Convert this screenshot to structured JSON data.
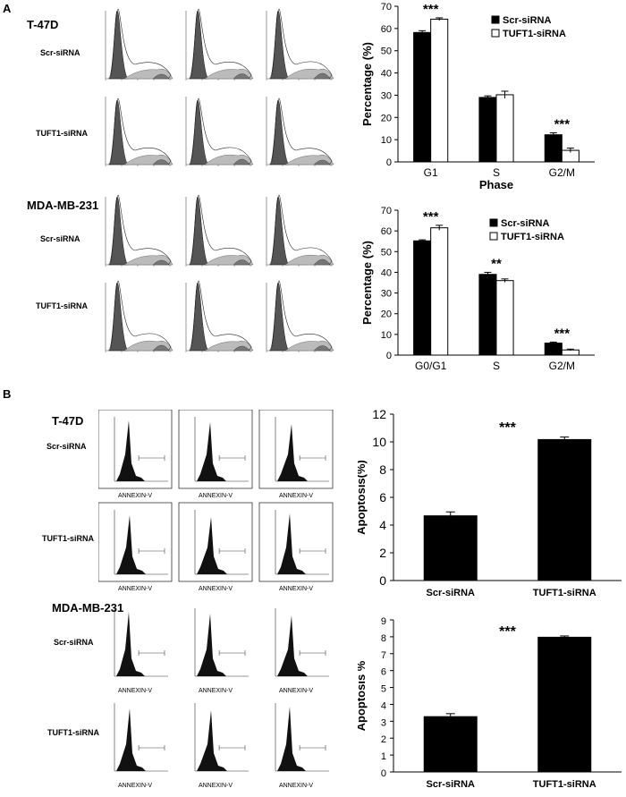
{
  "panels": {
    "a": {
      "label": "A",
      "t47d": {
        "cell_line": "T-47D",
        "rows": [
          "Scr-siRNA",
          "TUFT1-siRNA"
        ]
      },
      "mda": {
        "cell_line": "MDA-MB-231",
        "rows": [
          "Scr-siRNA",
          "TUFT1-siRNA"
        ]
      }
    },
    "b": {
      "label": "B",
      "t47d": {
        "cell_line": "T-47D",
        "rows": [
          "Scr-siRNA",
          "TUFT1-siRNA"
        ],
        "xlabel": "ANNEXIN-V"
      },
      "mda": {
        "cell_line": "MDA-MB-231",
        "rows": [
          "Scr-siRNA",
          "TUFT1-siRNA"
        ],
        "xlabel": "ANNEXIN-V"
      }
    }
  },
  "chart_data": [
    {
      "id": "a_t47d_cellcycle",
      "type": "bar",
      "categories": [
        "G1",
        "S",
        "G2/M"
      ],
      "series": [
        {
          "name": "Scr-siRNA",
          "values": [
            58.2,
            29,
            12.2
          ],
          "errors": [
            0.8,
            0.7,
            0.9
          ],
          "color": "#000000"
        },
        {
          "name": "TUFT1-siRNA",
          "values": [
            64.2,
            30.2,
            5.2
          ],
          "errors": [
            0.6,
            1.6,
            1.0
          ],
          "color": "#ffffff"
        }
      ],
      "significance": [
        "***",
        "",
        "***"
      ],
      "title": "",
      "xlabel": "Phase",
      "ylabel": "Percentage (%)",
      "ylim": [
        0,
        70
      ],
      "yticks": [
        0,
        10,
        20,
        30,
        40,
        50,
        60,
        70
      ],
      "legend_position": "top-right"
    },
    {
      "id": "a_mda_cellcycle",
      "type": "bar",
      "categories": [
        "G0/G1",
        "S",
        "G2/M"
      ],
      "series": [
        {
          "name": "Scr-siRNA",
          "values": [
            55.2,
            39,
            5.8
          ],
          "errors": [
            0.5,
            1.0,
            0.5
          ],
          "color": "#000000"
        },
        {
          "name": "TUFT1-siRNA",
          "values": [
            61.5,
            36,
            2.5
          ],
          "errors": [
            1.2,
            0.8,
            0.4
          ],
          "color": "#ffffff"
        }
      ],
      "significance": [
        "***",
        "**",
        "***"
      ],
      "title": "",
      "xlabel": "",
      "ylabel": "Percentage (%)",
      "ylim": [
        0,
        70
      ],
      "yticks": [
        0,
        10,
        20,
        30,
        40,
        50,
        60,
        70
      ],
      "legend_position": "top-right"
    },
    {
      "id": "b_t47d_apoptosis",
      "type": "bar",
      "categories": [
        "Scr-siRNA",
        "TUFT1-siRNA"
      ],
      "values": [
        4.7,
        10.2
      ],
      "errors": [
        0.25,
        0.15
      ],
      "significance": "***",
      "title": "",
      "xlabel": "",
      "ylabel": "Apoptosis(%)",
      "ylim": [
        0,
        12
      ],
      "yticks": [
        0,
        2,
        4,
        6,
        8,
        10,
        12
      ]
    },
    {
      "id": "b_mda_apoptosis",
      "type": "bar",
      "categories": [
        "Scr-siRNA",
        "TUFT1-siRNA"
      ],
      "values": [
        3.3,
        8.0
      ],
      "errors": [
        0.15,
        0.05
      ],
      "significance": "***",
      "title": "",
      "xlabel": "",
      "ylabel": "Apoptosis %",
      "ylim": [
        0,
        9
      ],
      "yticks": [
        0,
        1,
        2,
        3,
        4,
        5,
        6,
        7,
        8,
        9
      ]
    }
  ]
}
